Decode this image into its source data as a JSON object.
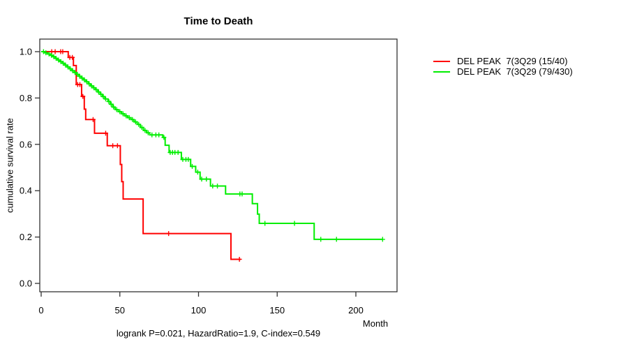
{
  "chart_data": {
    "type": "line",
    "subtype": "kaplan-meier-step",
    "title": "Time to Death",
    "xlabel": "Month",
    "ylabel": "cumulative survival rate",
    "annotation": "logrank P=0.021, HazardRatio=1.9, C-index=0.549",
    "xlim": [
      0,
      226
    ],
    "ylim": [
      0,
      1.05
    ],
    "x_ticks": [
      0,
      50,
      100,
      150,
      200
    ],
    "y_ticks": [
      0.0,
      0.2,
      0.4,
      0.6,
      0.8,
      1.0
    ],
    "grid": false,
    "legend_position": "right-outside",
    "axis_color": "#333333",
    "series": [
      {
        "name": "DEL PEAK  7(3Q29 (15/40)",
        "color": "#ff0000",
        "events_total": "15/40",
        "steps": [
          [
            0,
            1.0
          ],
          [
            17.2,
            0.975
          ],
          [
            20.5,
            0.94
          ],
          [
            22.3,
            0.858
          ],
          [
            25.7,
            0.807
          ],
          [
            27.4,
            0.752
          ],
          [
            28.3,
            0.707
          ],
          [
            33.9,
            0.648
          ],
          [
            42,
            0.594
          ],
          [
            50.3,
            0.513
          ],
          [
            51.2,
            0.439
          ],
          [
            52.1,
            0.364
          ],
          [
            64.8,
            0.215
          ],
          [
            120.6,
            0.104
          ]
        ],
        "end_month": 126.8,
        "censor_months": [
          6.7,
          8.9,
          12.4,
          13.7,
          18.2,
          19.8,
          23.2,
          24.6,
          26.5,
          33,
          41,
          45.5,
          48.5,
          81,
          126
        ]
      },
      {
        "name": "DEL PEAK  7(3Q29 (79/430)",
        "color": "#00ee00",
        "events_total": "79/430",
        "steps": [
          [
            0,
            1.0
          ],
          [
            2,
            0.995
          ],
          [
            4,
            0.99
          ],
          [
            6,
            0.984
          ],
          [
            7.5,
            0.978
          ],
          [
            9,
            0.971
          ],
          [
            10.5,
            0.964
          ],
          [
            12,
            0.957
          ],
          [
            13.5,
            0.95
          ],
          [
            15,
            0.942
          ],
          [
            16.5,
            0.934
          ],
          [
            18,
            0.926
          ],
          [
            19.5,
            0.918
          ],
          [
            21,
            0.91
          ],
          [
            22.5,
            0.902
          ],
          [
            24,
            0.894
          ],
          [
            25.5,
            0.886
          ],
          [
            27,
            0.878
          ],
          [
            28.5,
            0.87
          ],
          [
            30,
            0.861
          ],
          [
            31.5,
            0.852
          ],
          [
            33,
            0.844
          ],
          [
            34.5,
            0.836
          ],
          [
            36,
            0.826
          ],
          [
            37.5,
            0.816
          ],
          [
            39,
            0.806
          ],
          [
            40.5,
            0.796
          ],
          [
            42.5,
            0.785
          ],
          [
            44,
            0.773
          ],
          [
            45.5,
            0.761
          ],
          [
            47,
            0.75
          ],
          [
            49,
            0.741
          ],
          [
            51,
            0.732
          ],
          [
            53,
            0.723
          ],
          [
            55,
            0.715
          ],
          [
            57,
            0.707
          ],
          [
            59,
            0.697
          ],
          [
            61,
            0.686
          ],
          [
            63,
            0.673
          ],
          [
            65,
            0.66
          ],
          [
            67,
            0.65
          ],
          [
            69,
            0.641
          ],
          [
            77.3,
            0.63
          ],
          [
            78.8,
            0.596
          ],
          [
            81.3,
            0.565
          ],
          [
            89.1,
            0.535
          ],
          [
            95,
            0.505
          ],
          [
            98.2,
            0.48
          ],
          [
            101,
            0.45
          ],
          [
            107.6,
            0.42
          ],
          [
            117.2,
            0.386
          ],
          [
            134.2,
            0.344
          ],
          [
            137.5,
            0.299
          ],
          [
            138.6,
            0.259
          ],
          [
            173.5,
            0.19
          ]
        ],
        "end_month": 217,
        "censor_months": [
          1.5,
          3,
          5,
          6.5,
          8,
          9.5,
          11,
          12.5,
          14,
          15.5,
          17,
          18.5,
          20,
          21.5,
          23,
          24.5,
          26,
          27.5,
          29,
          30.5,
          32,
          33.5,
          35,
          36.5,
          38,
          39.5,
          41,
          43,
          44.5,
          46,
          48,
          50,
          52,
          54,
          56,
          58,
          60,
          62,
          64,
          66,
          68,
          70.4,
          72.9,
          74.8,
          78,
          82,
          83.5,
          85,
          87,
          90,
          92,
          93.5,
          96,
          99.5,
          102,
          105,
          109,
          112,
          126.3,
          127.7,
          142.2,
          161,
          177.7,
          187.7,
          217
        ]
      }
    ]
  }
}
